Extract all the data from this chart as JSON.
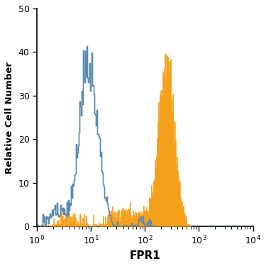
{
  "title": "",
  "xlabel": "FPR1",
  "ylabel": "Relative Cell Number",
  "xlim_log": [
    0,
    4
  ],
  "ylim": [
    0,
    50
  ],
  "yticks": [
    0,
    10,
    20,
    30,
    40,
    50
  ],
  "xtick_locs": [
    1,
    10,
    100,
    1000,
    10000
  ],
  "blue_outline_color": "#5a8ab0",
  "orange_color": "#f5a01a",
  "bg_color": "#ffffff",
  "figsize": [
    3.75,
    3.75
  ],
  "dpi": 100,
  "blue_peak": 10,
  "blue_peak_height": 41,
  "orange_peak": 270,
  "orange_peak_height": 39
}
